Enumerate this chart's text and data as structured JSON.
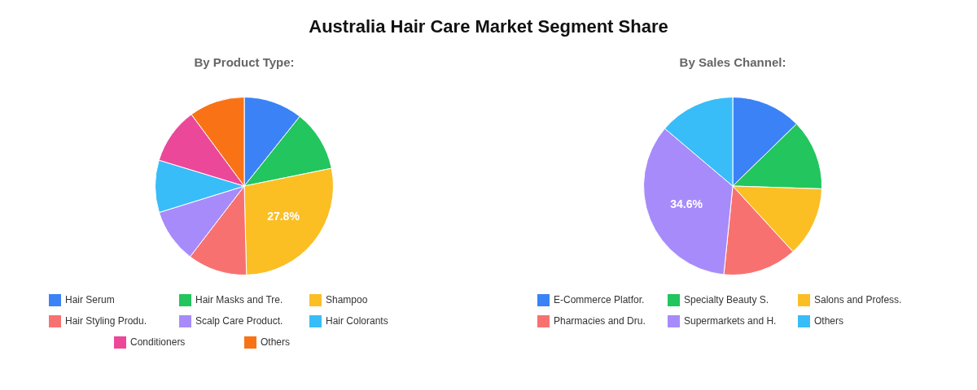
{
  "chart_data": [
    {
      "type": "pie",
      "title": "Australia Hair Care Market Segment Share",
      "subtitle": "By Product Type:",
      "categories": [
        "Hair Serum",
        "Hair Masks and Tre.",
        "Shampoo",
        "Hair Styling Produ.",
        "Scalp Care Product.",
        "Hair Colorants",
        "Conditioners",
        "Others"
      ],
      "values": [
        10.7,
        11.1,
        27.8,
        10.8,
        9.8,
        9.5,
        10.2,
        10.1
      ],
      "colors": [
        "#3b82f6",
        "#22c55e",
        "#fbbf24",
        "#f87171",
        "#a78bfa",
        "#38bdf8",
        "#ec4899",
        "#f97316"
      ],
      "value_labels": [
        null,
        null,
        "27.8%",
        null,
        null,
        null,
        null,
        null
      ],
      "legend": "bottom"
    },
    {
      "type": "pie",
      "subtitle": "By Sales Channel:",
      "categories": [
        "E-Commerce Platfor.",
        "Specialty Beauty S.",
        "Salons and Profess.",
        "Pharmacies and Dru.",
        "Supermarkets and H.",
        "Others"
      ],
      "values": [
        12.7,
        12.8,
        12.7,
        13.4,
        34.6,
        13.8
      ],
      "colors": [
        "#3b82f6",
        "#22c55e",
        "#fbbf24",
        "#f87171",
        "#a78bfa",
        "#38bdf8"
      ],
      "value_labels": [
        null,
        null,
        null,
        null,
        "34.6%",
        null
      ],
      "legend": "bottom"
    }
  ]
}
